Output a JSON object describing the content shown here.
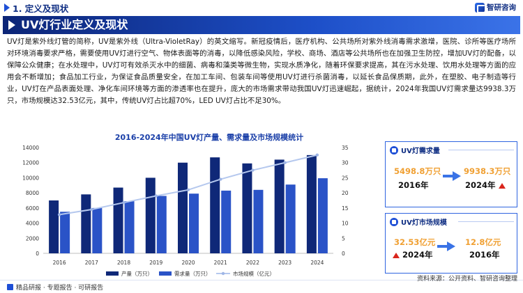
{
  "header": {
    "section_title": "1. 定义及现状",
    "logo_text": "智研咨询",
    "banner_title": "UV灯行业定义及现状"
  },
  "paragraph": "UV灯是紫外线灯管的简称，UV是紫外线（Ultra-VioletRay）的英文缩写。新冠疫情后，医疗机构、公共场所对紫外线消毒需求激增，医院、诊所等医疗场所对环境消毒要求严格，需要使用UV灯进行空气、物体表面等的消毒，以降低感染风险，学校、商场、酒店等公共场所也在加强卫生防控，增加UV灯的配备，以保障公众健康；在水处理中，UV灯可有效杀灭水中的细菌、病毒和藻类等微生物，实现水质净化，随着环保要求提高，其在污水处理、饮用水处理等方面的应用会不断增加；食品加工行业，为保证食品质量安全，在加工车间、包装车间等使用UV灯进行杀菌消毒，以延长食品保质期，此外，在塑胶、电子制造等行业，UV灯在产品表面处理、净化车间环境等方面的渗透率也在提升，庞大的市场需求带动我国UV灯迅速崛起，据统计，2024年我国UV灯需求量达9938.3万只，市场规模达32.53亿元，其中，传统UV灯占比超70%，LED UV灯占比不足30%。",
  "chart_data": {
    "type": "bar",
    "title": "2016-2024年中国UV灯产量、需求量及市场规模统计",
    "categories": [
      "2016",
      "2017",
      "2018",
      "2019",
      "2020",
      "2021",
      "2022",
      "2023",
      "2024"
    ],
    "series": [
      {
        "name": "产量（万只）",
        "type": "bar",
        "axis": "left",
        "color": "#0f2878",
        "values": [
          7000,
          7800,
          8700,
          10000,
          12000,
          12700,
          11900,
          12400,
          13000
        ]
      },
      {
        "name": "需求量（万只）",
        "type": "bar",
        "axis": "left",
        "color": "#2a53c7",
        "values": [
          5499,
          6000,
          6900,
          7600,
          7900,
          8300,
          8400,
          9100,
          9938
        ]
      },
      {
        "name": "市场规模（亿元）",
        "type": "line",
        "axis": "right",
        "color": "#b5c8ee",
        "values": [
          12.8,
          14.5,
          16.8,
          19.0,
          21.0,
          24.5,
          27.5,
          30.0,
          32.53
        ]
      }
    ],
    "left_axis": {
      "min": 0,
      "max": 14000,
      "ticks": [
        0,
        2000,
        4000,
        6000,
        8000,
        10000,
        12000,
        14000
      ]
    },
    "right_axis": {
      "min": 0,
      "max": 35,
      "ticks": [
        0,
        5,
        10,
        15,
        20,
        25,
        30,
        35
      ]
    },
    "legend_position": "bottom"
  },
  "panels": {
    "demand": {
      "title": "UV灯需求量",
      "from_value": "5498.8万只",
      "from_year": "2016年",
      "to_value": "9938.3万只",
      "to_year": "2024年"
    },
    "market": {
      "title": "UV灯市场规模",
      "left_value": "32.53亿元",
      "left_year": "2024年",
      "right_value": "12.8亿元",
      "right_year": "2016年"
    }
  },
  "footer": {
    "left": "精品研报 · 专题报告 · 可研报告",
    "source": "资料来源：公开资料、智研咨询整理"
  }
}
